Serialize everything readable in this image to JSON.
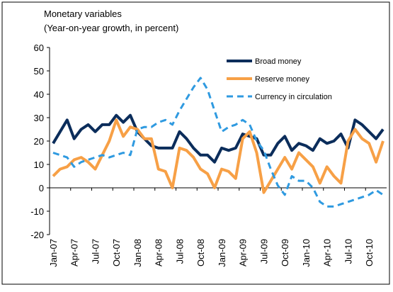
{
  "chart_data": {
    "type": "line",
    "title": "Monetary variables",
    "subtitle": "(Year-on-year growth, in percent)",
    "categories": [
      "Jan-07",
      null,
      null,
      "Apr-07",
      null,
      null,
      "Jul-07",
      null,
      null,
      "Oct-07",
      null,
      null,
      "Jan-08",
      null,
      null,
      "Apr-08",
      null,
      null,
      "Jul-08",
      null,
      null,
      "Oct-08",
      null,
      null,
      "Jan-09",
      null,
      null,
      "Apr-09",
      null,
      null,
      "Jul-09",
      null,
      null,
      "Oct-09",
      null,
      null,
      "Jan-10",
      null,
      null,
      "Apr-10",
      null,
      null,
      "Jul-10",
      null,
      null,
      "Oct-10",
      null,
      null
    ],
    "series": [
      {
        "name": "Broad money",
        "color": "#0b2d5b",
        "dash": "solid",
        "values": [
          19,
          24,
          29,
          21,
          25,
          27,
          24,
          27,
          27,
          31,
          28,
          31,
          24,
          21,
          18,
          17,
          17,
          17,
          24,
          21,
          17,
          14,
          14,
          11,
          17,
          16,
          17,
          23,
          22,
          21,
          14,
          14,
          19,
          22,
          16,
          19,
          18,
          16,
          21,
          19,
          20,
          23,
          17,
          29,
          27,
          24,
          21,
          25
        ]
      },
      {
        "name": "Reserve money",
        "color": "#f7a046",
        "dash": "solid",
        "values": [
          5,
          8,
          9,
          12,
          13,
          11,
          8,
          14,
          20,
          29,
          22,
          26,
          25,
          21,
          21,
          8,
          7,
          0,
          17,
          16,
          13,
          8,
          6,
          0,
          8,
          7,
          4,
          21,
          24,
          15,
          -2,
          3,
          8,
          13,
          8,
          15,
          12,
          9,
          2,
          9,
          5,
          2,
          20,
          25,
          21,
          19,
          11,
          20
        ]
      },
      {
        "name": "Currency in circulation",
        "color": "#2f9ae0",
        "dash": "dashed",
        "values": [
          15,
          14,
          13,
          9,
          11,
          12,
          13,
          14,
          13,
          14,
          15,
          14,
          25,
          26,
          26,
          28,
          29,
          27,
          33,
          38,
          43,
          47,
          42,
          33,
          24,
          26,
          27,
          29,
          27,
          20,
          16,
          8,
          1,
          -3,
          5,
          3,
          3,
          0,
          -6,
          -8,
          -8,
          -7,
          -6,
          -5,
          -4,
          -3,
          -1,
          -3
        ]
      }
    ],
    "ylim": [
      -20,
      60
    ],
    "yticks": [
      -20,
      -10,
      0,
      10,
      20,
      30,
      40,
      50,
      60
    ],
    "legend": "upper right",
    "grid": false
  }
}
